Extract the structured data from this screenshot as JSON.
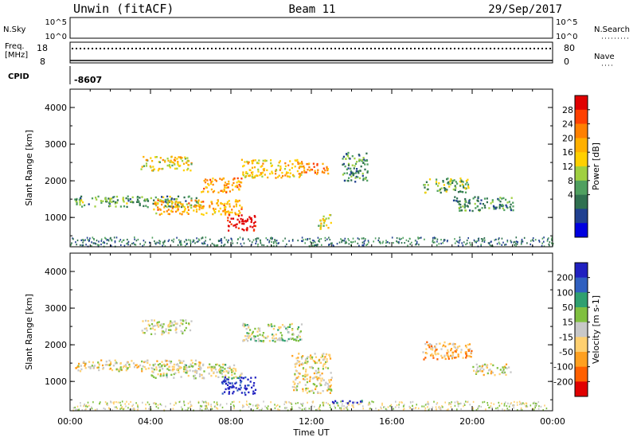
{
  "header": {
    "station": "Unwin (fitACF)",
    "beam": "Beam 11",
    "date": "29/Sep/2017"
  },
  "summary_panels": {
    "nsky_label": "N.Sky",
    "nsky_ticks": [
      "10^5",
      "10^0"
    ],
    "freq_label_line1": "Freq.",
    "freq_label_line2": "[MHz]",
    "freq_ticks": [
      "18",
      "8"
    ],
    "right_top_ticks": [
      "10^5",
      "10^0"
    ],
    "right_freq_ticks": [
      "80",
      "0"
    ],
    "nsearch_label": "N.Search",
    "nave_label": "Nave",
    "cpid_label": "CPID",
    "cpid_value": "-8607"
  },
  "chart_data": [
    {
      "type": "heatmap",
      "name": "power",
      "ylabel": "Slant Range [km]",
      "ylim": [
        200,
        4500
      ],
      "yticks": [
        "4000",
        "3000",
        "2000",
        "1000"
      ],
      "xlim": [
        0,
        24
      ],
      "colorbar": {
        "label": "Power [dB]",
        "ticks": [
          "28",
          "24",
          "20",
          "16",
          "12",
          "8",
          "4"
        ],
        "colors": [
          "#e00000",
          "#ff4000",
          "#ff8000",
          "#ffb000",
          "#ffd000",
          "#a0d040",
          "#50a060",
          "#307050",
          "#204090",
          "#0000e0"
        ]
      },
      "echo_regions": [
        {
          "t0": 0.2,
          "t1": 6.5,
          "r0": 1300,
          "r1": 1600,
          "level": 0.35
        },
        {
          "t0": 3.5,
          "t1": 6.0,
          "r0": 2300,
          "r1": 2700,
          "level": 0.55
        },
        {
          "t0": 4.0,
          "t1": 8.5,
          "r0": 1100,
          "r1": 1500,
          "level": 0.65
        },
        {
          "t0": 6.5,
          "t1": 8.5,
          "r0": 1700,
          "r1": 2100,
          "level": 0.7
        },
        {
          "t0": 7.8,
          "t1": 9.2,
          "r0": 650,
          "r1": 1100,
          "level": 1.0
        },
        {
          "t0": 8.5,
          "t1": 11.5,
          "r0": 2100,
          "r1": 2600,
          "level": 0.6
        },
        {
          "t0": 11.3,
          "t1": 12.8,
          "r0": 2200,
          "r1": 2500,
          "level": 0.75
        },
        {
          "t0": 12.3,
          "t1": 13.0,
          "r0": 700,
          "r1": 1100,
          "level": 0.5
        },
        {
          "t0": 13.5,
          "t1": 14.8,
          "r0": 2000,
          "r1": 2800,
          "level": 0.3
        },
        {
          "t0": 17.5,
          "t1": 19.8,
          "r0": 1700,
          "r1": 2100,
          "level": 0.4
        },
        {
          "t0": 19.0,
          "t1": 22.0,
          "r0": 1200,
          "r1": 1600,
          "level": 0.3
        }
      ]
    },
    {
      "type": "heatmap",
      "name": "velocity",
      "ylabel": "Slant Range [km]",
      "ylim": [
        200,
        4500
      ],
      "yticks": [
        "4000",
        "3000",
        "2000",
        "1000"
      ],
      "xlim": [
        0,
        24
      ],
      "xticks": [
        "00:00",
        "04:00",
        "08:00",
        "12:00",
        "16:00",
        "20:00",
        "00:00"
      ],
      "xlabel": "Time UT",
      "colorbar": {
        "label": "Velocity [m s-1]",
        "ticks": [
          "200",
          "100",
          "50",
          "15",
          "-15",
          "-50",
          "-100",
          "-200"
        ],
        "colors": [
          "#2020c0",
          "#3060c0",
          "#30a070",
          "#80c040",
          "#c8c8c8",
          "#ffd070",
          "#ffa020",
          "#ff6000",
          "#e00000"
        ]
      },
      "echo_regions": [
        {
          "t0": 0.2,
          "t1": 6.5,
          "r0": 1300,
          "r1": 1600,
          "level": 0.45
        },
        {
          "t0": 3.5,
          "t1": 6.0,
          "r0": 2300,
          "r1": 2700,
          "level": 0.5
        },
        {
          "t0": 4.0,
          "t1": 8.5,
          "r0": 1100,
          "r1": 1500,
          "level": 0.5
        },
        {
          "t0": 7.5,
          "t1": 9.2,
          "r0": 650,
          "r1": 1150,
          "level": 0.95
        },
        {
          "t0": 8.5,
          "t1": 11.5,
          "r0": 2100,
          "r1": 2600,
          "level": 0.55
        },
        {
          "t0": 11.0,
          "t1": 13.0,
          "r0": 700,
          "r1": 1800,
          "level": 0.45
        },
        {
          "t0": 13.0,
          "t1": 14.5,
          "r0": 400,
          "r1": 500,
          "level": 0.9
        },
        {
          "t0": 17.5,
          "t1": 20.0,
          "r0": 1600,
          "r1": 2100,
          "level": 0.35
        },
        {
          "t0": 20.0,
          "t1": 22.0,
          "r0": 1200,
          "r1": 1500,
          "level": 0.45
        }
      ]
    }
  ]
}
